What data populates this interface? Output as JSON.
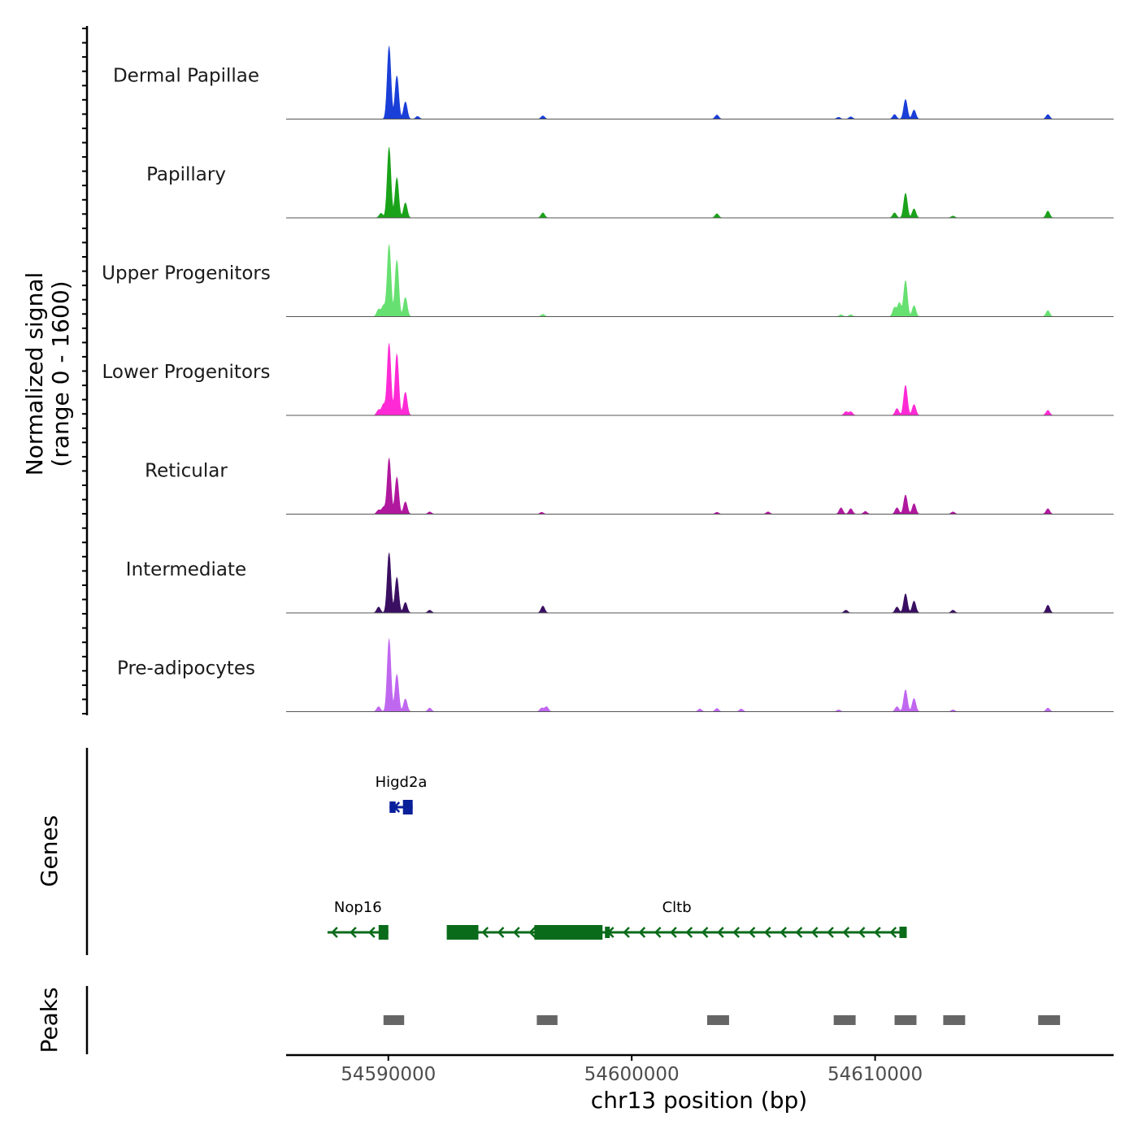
{
  "chart_data": {
    "type": "area",
    "title": "",
    "xlabel": "chr13 position (bp)",
    "ylabel": [
      "Normalized signal",
      "(range 0 - 1600)"
    ],
    "y_range": [
      0,
      1600
    ],
    "xlim": [
      54585800,
      54619800
    ],
    "x_ticks": [
      {
        "value": 54590000,
        "label": "54590000"
      },
      {
        "value": 54600000,
        "label": "54600000"
      },
      {
        "value": 54610000,
        "label": "54610000"
      }
    ],
    "tracks": [
      {
        "name": "Dermal Papillae",
        "color": "#1a3fd8",
        "peaks": [
          [
            54590030,
            1600
          ],
          [
            54590350,
            950
          ],
          [
            54590700,
            380
          ],
          [
            54591200,
            60
          ],
          [
            54596350,
            70
          ],
          [
            54603500,
            90
          ],
          [
            54608500,
            40
          ],
          [
            54609000,
            50
          ],
          [
            54610800,
            100
          ],
          [
            54611250,
            430
          ],
          [
            54611600,
            200
          ],
          [
            54617100,
            100
          ]
        ]
      },
      {
        "name": "Papillary",
        "color": "#1aa31a",
        "peaks": [
          [
            54589700,
            100
          ],
          [
            54590030,
            1550
          ],
          [
            54590350,
            880
          ],
          [
            54590700,
            330
          ],
          [
            54596350,
            110
          ],
          [
            54603500,
            90
          ],
          [
            54610800,
            110
          ],
          [
            54611250,
            540
          ],
          [
            54611600,
            200
          ],
          [
            54613200,
            40
          ],
          [
            54617100,
            150
          ]
        ]
      },
      {
        "name": "Upper Progenitors",
        "color": "#66e070",
        "peaks": [
          [
            54589600,
            160
          ],
          [
            54589800,
            240
          ],
          [
            54590030,
            1580
          ],
          [
            54590350,
            1240
          ],
          [
            54590700,
            420
          ],
          [
            54596350,
            50
          ],
          [
            54608600,
            40
          ],
          [
            54609000,
            40
          ],
          [
            54610800,
            200
          ],
          [
            54611000,
            300
          ],
          [
            54611250,
            790
          ],
          [
            54611600,
            240
          ],
          [
            54617100,
            130
          ]
        ]
      },
      {
        "name": "Lower Progenitors",
        "color": "#ff2ad5",
        "peaks": [
          [
            54589600,
            120
          ],
          [
            54589800,
            240
          ],
          [
            54590030,
            1580
          ],
          [
            54590350,
            1350
          ],
          [
            54590700,
            510
          ],
          [
            54608800,
            80
          ],
          [
            54609000,
            80
          ],
          [
            54610900,
            150
          ],
          [
            54611250,
            660
          ],
          [
            54611600,
            240
          ],
          [
            54617100,
            110
          ]
        ]
      },
      {
        "name": "Reticular",
        "color": "#b0189e",
        "peaks": [
          [
            54589600,
            90
          ],
          [
            54589800,
            150
          ],
          [
            54590030,
            1230
          ],
          [
            54590350,
            810
          ],
          [
            54590700,
            270
          ],
          [
            54591700,
            50
          ],
          [
            54596300,
            40
          ],
          [
            54603500,
            40
          ],
          [
            54605600,
            50
          ],
          [
            54608600,
            140
          ],
          [
            54609000,
            120
          ],
          [
            54609600,
            60
          ],
          [
            54610900,
            140
          ],
          [
            54611250,
            420
          ],
          [
            54611600,
            230
          ],
          [
            54613200,
            50
          ],
          [
            54617100,
            120
          ]
        ]
      },
      {
        "name": "Intermediate",
        "color": "#3a0f62",
        "peaks": [
          [
            54589600,
            130
          ],
          [
            54590030,
            1320
          ],
          [
            54590350,
            780
          ],
          [
            54590700,
            230
          ],
          [
            54591700,
            60
          ],
          [
            54596350,
            150
          ],
          [
            54608800,
            60
          ],
          [
            54610900,
            130
          ],
          [
            54611250,
            420
          ],
          [
            54611600,
            260
          ],
          [
            54613200,
            60
          ],
          [
            54617100,
            170
          ]
        ]
      },
      {
        "name": "Pre-adipocytes",
        "color": "#c067f0",
        "peaks": [
          [
            54589600,
            110
          ],
          [
            54590030,
            1600
          ],
          [
            54590350,
            820
          ],
          [
            54590700,
            280
          ],
          [
            54591700,
            80
          ],
          [
            54596300,
            80
          ],
          [
            54596500,
            110
          ],
          [
            54602800,
            60
          ],
          [
            54603500,
            70
          ],
          [
            54604500,
            60
          ],
          [
            54608500,
            40
          ],
          [
            54610900,
            110
          ],
          [
            54611250,
            480
          ],
          [
            54611600,
            290
          ],
          [
            54613200,
            40
          ],
          [
            54617100,
            80
          ]
        ]
      }
    ],
    "genes": [
      {
        "name": "Higd2a",
        "color": "#0a1f9a",
        "start": 54590050,
        "end": 54591000,
        "strand": "-",
        "row": 1,
        "exons": [
          [
            54590050,
            54590300,
            "thin"
          ],
          [
            54590600,
            54591000,
            "thick"
          ]
        ]
      },
      {
        "name": "Nop16",
        "color": "#0a6b1a",
        "start": 54587500,
        "end": 54590000,
        "strand": "-",
        "row": 2,
        "exons": [
          [
            54589600,
            54590000,
            "thick"
          ]
        ]
      },
      {
        "name": "Cltb",
        "color": "#0a6b1a",
        "start": 54592400,
        "end": 54611300,
        "strand": "-",
        "row": 2,
        "exons": [
          [
            54592400,
            54593700,
            "thick"
          ],
          [
            54596000,
            54598800,
            "thick"
          ],
          [
            54598900,
            54599100,
            "thin"
          ],
          [
            54611000,
            54611300,
            "thin"
          ]
        ]
      }
    ],
    "peaks": [
      [
        54589800,
        54590650
      ],
      [
        54596100,
        54596950
      ],
      [
        54603100,
        54604000
      ],
      [
        54608300,
        54609200
      ],
      [
        54610800,
        54611700
      ],
      [
        54612800,
        54613700
      ],
      [
        54616700,
        54617600
      ]
    ],
    "panels": {
      "genes_label": "Genes",
      "peaks_label": "Peaks"
    },
    "colors": {
      "axis": "#000000",
      "baseline": "#555555",
      "peak_box": "#666666"
    }
  }
}
